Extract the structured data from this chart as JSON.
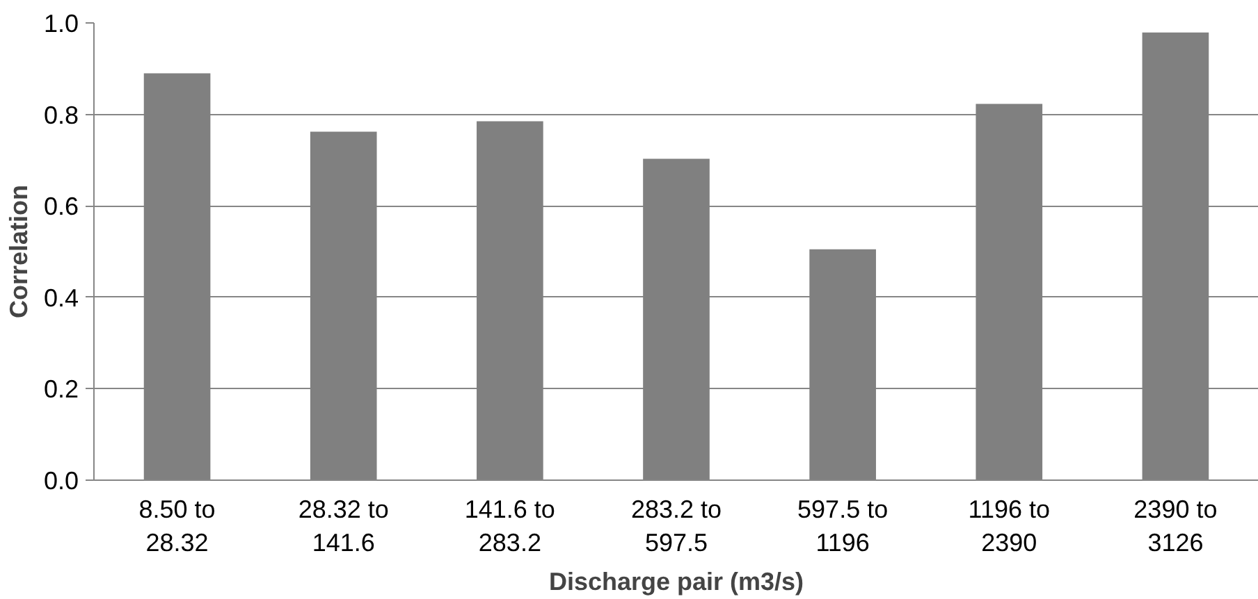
{
  "chart_data": {
    "type": "bar",
    "xlabel": "Discharge pair (m3/s)",
    "ylabel": "Correlation",
    "categories": [
      "8.50 to 28.32",
      "28.32 to 141.6",
      "141.6 to 283.2",
      "283.2 to 597.5",
      "597.5 to 1196",
      "1196 to 2390",
      "2390 to 3126"
    ],
    "values": [
      0.89,
      0.762,
      0.785,
      0.703,
      0.505,
      0.823,
      0.979
    ],
    "color": "#808080",
    "ylim": [
      0,
      1.0
    ],
    "yticks": [
      {
        "value": 0,
        "label": "0.0"
      },
      {
        "value": 0.2,
        "label": "0.2"
      },
      {
        "value": 0.4,
        "label": "0.4"
      },
      {
        "value": 0.6,
        "label": "0.6"
      },
      {
        "value": 0.8,
        "label": "0.8"
      },
      {
        "value": 1.0,
        "label": "1.0"
      }
    ],
    "grid": "y"
  }
}
